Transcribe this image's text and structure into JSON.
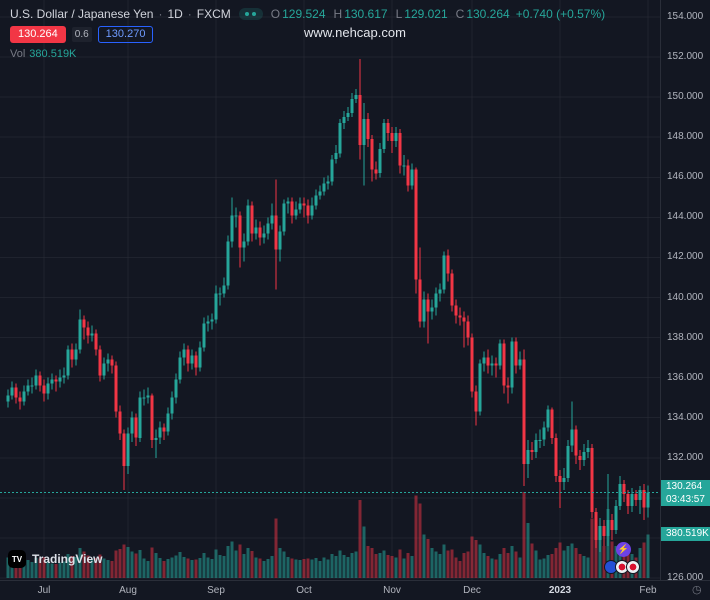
{
  "colors": {
    "bg": "#131722",
    "up": "#26a69a",
    "down": "#f23645",
    "vol_up": "rgba(38,166,154,0.55)",
    "vol_down": "rgba(242,54,69,0.5)",
    "grid": "rgba(42,46,57,0.55)",
    "axis_text": "#b2b5be",
    "dim_text": "#787b86",
    "title_text": "#d1d4dc",
    "sell_bg": "#f23645",
    "buy_border": "#2962ff",
    "badge_bg": "#26a69a"
  },
  "header": {
    "symbol_title": "U.S. Dollar / Japanese Yen",
    "sep": "·",
    "interval": "1D",
    "exchange": "FXCM",
    "ohlc_labels": {
      "o": "O",
      "h": "H",
      "l": "L",
      "c": "C"
    },
    "ohlc": {
      "o": "129.524",
      "h": "130.617",
      "l": "129.021",
      "c": "130.264",
      "change": "+0.740 (+0.57%)"
    },
    "sell_price": "130.264",
    "spread": "0.6",
    "buy_price": "130.270"
  },
  "volume": {
    "label": "Vol",
    "value": "380.519K"
  },
  "watermark": "www.nehcap.com",
  "price_axis": {
    "labels": [
      "154.000",
      "152.000",
      "150.000",
      "148.000",
      "146.000",
      "144.000",
      "142.000",
      "140.000",
      "138.000",
      "136.000",
      "134.000",
      "132.000",
      "130.000",
      "128.000",
      "126.000"
    ],
    "last_price": "130.264",
    "countdown": "03:43:57"
  },
  "logo": {
    "icon_text": "TV",
    "text": "TradingView"
  },
  "icons": {
    "boost": "⚡",
    "clock": "◷"
  },
  "chart_data": {
    "type": "candlestick",
    "title": "U.S. Dollar / Japanese Yen",
    "interval": "1D",
    "exchange": "FXCM",
    "ylim": [
      126,
      154
    ],
    "price_step": 2,
    "grid": true,
    "last": {
      "open": 129.524,
      "high": 130.617,
      "low": 129.021,
      "close": 130.264,
      "change": 0.74,
      "change_pct": 0.57,
      "volume": "380.519K"
    },
    "months": [
      {
        "label": "Jul",
        "index": 9
      },
      {
        "label": "Aug",
        "index": 30
      },
      {
        "label": "Sep",
        "index": 52
      },
      {
        "label": "Oct",
        "index": 74
      },
      {
        "label": "Nov",
        "index": 96
      },
      {
        "label": "Dec",
        "index": 116
      },
      {
        "label": "2023",
        "index": 138,
        "emph": true
      },
      {
        "label": "Feb",
        "index": 160
      }
    ],
    "candles": [
      [
        134.8,
        135.4,
        134.5,
        135.1,
        180
      ],
      [
        135.1,
        135.8,
        134.9,
        135.5,
        160
      ],
      [
        135.5,
        135.7,
        134.7,
        135.0,
        170
      ],
      [
        135.0,
        135.3,
        134.4,
        134.8,
        150
      ],
      [
        134.8,
        135.6,
        134.6,
        135.3,
        165
      ],
      [
        135.3,
        135.9,
        135.1,
        135.6,
        158
      ],
      [
        135.6,
        136.0,
        135.2,
        135.6,
        140
      ],
      [
        135.6,
        136.4,
        135.4,
        136.1,
        175
      ],
      [
        136.1,
        136.3,
        135.3,
        135.6,
        168
      ],
      [
        135.6,
        135.9,
        134.8,
        135.2,
        182
      ],
      [
        135.2,
        136.0,
        134.9,
        135.7,
        150
      ],
      [
        135.7,
        136.2,
        135.4,
        135.9,
        128
      ],
      [
        135.9,
        136.1,
        135.3,
        135.8,
        120
      ],
      [
        135.8,
        136.4,
        135.5,
        136.0,
        135
      ],
      [
        136.0,
        136.5,
        135.7,
        136.1,
        142
      ],
      [
        136.1,
        137.6,
        135.9,
        137.4,
        210
      ],
      [
        137.4,
        137.7,
        136.5,
        136.9,
        190
      ],
      [
        136.9,
        137.7,
        136.6,
        137.4,
        185
      ],
      [
        137.4,
        139.4,
        137.2,
        138.9,
        260
      ],
      [
        138.9,
        139.1,
        137.9,
        138.5,
        230
      ],
      [
        138.5,
        138.8,
        137.7,
        138.1,
        195
      ],
      [
        138.1,
        138.6,
        137.8,
        138.2,
        160
      ],
      [
        138.2,
        138.4,
        137.1,
        137.4,
        175
      ],
      [
        137.4,
        137.6,
        135.8,
        136.1,
        205
      ],
      [
        136.1,
        137.0,
        135.9,
        136.7,
        168
      ],
      [
        136.7,
        137.2,
        136.3,
        136.9,
        155
      ],
      [
        136.9,
        137.1,
        136.2,
        136.6,
        148
      ],
      [
        136.6,
        136.8,
        134.0,
        134.3,
        240
      ],
      [
        134.3,
        134.6,
        132.9,
        133.2,
        255
      ],
      [
        133.2,
        133.4,
        130.4,
        131.6,
        290
      ],
      [
        131.6,
        133.5,
        131.2,
        133.2,
        270
      ],
      [
        133.2,
        134.3,
        132.8,
        134.0,
        230
      ],
      [
        134.0,
        134.2,
        132.6,
        133.0,
        215
      ],
      [
        133.0,
        135.3,
        132.8,
        135.0,
        245
      ],
      [
        135.0,
        135.4,
        134.6,
        135.0,
        170
      ],
      [
        135.0,
        135.5,
        134.7,
        135.1,
        150
      ],
      [
        135.1,
        135.2,
        132.5,
        132.9,
        265
      ],
      [
        132.9,
        133.4,
        132.0,
        133.0,
        220
      ],
      [
        133.0,
        133.8,
        132.7,
        133.5,
        175
      ],
      [
        133.5,
        133.7,
        132.9,
        133.3,
        150
      ],
      [
        133.3,
        134.5,
        133.1,
        134.2,
        165
      ],
      [
        134.2,
        135.3,
        133.9,
        135.0,
        180
      ],
      [
        135.0,
        136.2,
        134.7,
        135.9,
        195
      ],
      [
        135.9,
        137.3,
        135.7,
        137.0,
        225
      ],
      [
        137.0,
        137.7,
        136.6,
        137.4,
        185
      ],
      [
        137.4,
        137.6,
        136.3,
        136.7,
        170
      ],
      [
        136.7,
        137.4,
        136.4,
        137.1,
        155
      ],
      [
        137.1,
        137.3,
        136.1,
        136.5,
        160
      ],
      [
        136.5,
        137.8,
        136.3,
        137.5,
        175
      ],
      [
        137.5,
        139.0,
        137.3,
        138.7,
        220
      ],
      [
        138.7,
        139.1,
        138.3,
        138.8,
        180
      ],
      [
        138.8,
        139.2,
        138.4,
        138.9,
        165
      ],
      [
        138.9,
        140.6,
        138.7,
        140.2,
        250
      ],
      [
        140.2,
        140.5,
        139.6,
        140.2,
        200
      ],
      [
        140.2,
        141.0,
        140.0,
        140.6,
        190
      ],
      [
        140.6,
        143.1,
        140.4,
        142.8,
        280
      ],
      [
        142.8,
        145.0,
        142.5,
        144.1,
        320
      ],
      [
        144.1,
        144.5,
        143.5,
        144.1,
        240
      ],
      [
        144.1,
        144.3,
        141.5,
        142.5,
        290
      ],
      [
        142.5,
        143.2,
        141.8,
        142.8,
        210
      ],
      [
        142.8,
        144.9,
        142.6,
        144.6,
        260
      ],
      [
        144.6,
        144.8,
        142.8,
        143.2,
        235
      ],
      [
        143.2,
        143.9,
        142.9,
        143.5,
        180
      ],
      [
        143.5,
        143.8,
        142.6,
        143.0,
        170
      ],
      [
        143.0,
        143.6,
        142.7,
        143.2,
        150
      ],
      [
        143.2,
        144.0,
        142.9,
        143.7,
        165
      ],
      [
        143.7,
        144.7,
        143.4,
        144.1,
        190
      ],
      [
        144.1,
        145.9,
        140.4,
        142.4,
        520
      ],
      [
        142.4,
        143.6,
        141.8,
        143.3,
        260
      ],
      [
        143.3,
        144.9,
        143.1,
        144.7,
        230
      ],
      [
        144.7,
        145.0,
        144.2,
        144.8,
        185
      ],
      [
        144.8,
        145.0,
        143.7,
        144.1,
        170
      ],
      [
        144.1,
        144.8,
        143.9,
        144.4,
        160
      ],
      [
        144.4,
        145.0,
        144.2,
        144.7,
        155
      ],
      [
        144.7,
        145.0,
        144.0,
        144.6,
        165
      ],
      [
        144.6,
        144.9,
        143.7,
        144.1,
        170
      ],
      [
        144.1,
        145.0,
        143.9,
        144.6,
        160
      ],
      [
        144.6,
        145.4,
        144.4,
        145.1,
        175
      ],
      [
        145.1,
        145.6,
        144.9,
        145.3,
        150
      ],
      [
        145.3,
        146.0,
        145.1,
        145.7,
        180
      ],
      [
        145.7,
        146.1,
        145.4,
        145.8,
        160
      ],
      [
        145.8,
        147.1,
        145.6,
        146.9,
        210
      ],
      [
        146.9,
        147.6,
        146.7,
        147.2,
        190
      ],
      [
        147.2,
        148.9,
        147.0,
        148.7,
        240
      ],
      [
        148.7,
        149.3,
        148.4,
        149.0,
        200
      ],
      [
        149.0,
        149.5,
        148.8,
        149.2,
        185
      ],
      [
        149.2,
        150.2,
        149.0,
        149.9,
        220
      ],
      [
        149.9,
        150.4,
        149.7,
        150.1,
        230
      ],
      [
        150.1,
        151.9,
        146.9,
        147.6,
        680
      ],
      [
        147.6,
        149.7,
        145.6,
        148.9,
        450
      ],
      [
        148.9,
        149.2,
        147.5,
        147.9,
        280
      ],
      [
        147.9,
        148.1,
        145.8,
        146.4,
        260
      ],
      [
        146.4,
        146.8,
        145.9,
        146.2,
        210
      ],
      [
        146.2,
        147.7,
        146.0,
        147.4,
        220
      ],
      [
        147.4,
        148.9,
        147.2,
        148.7,
        240
      ],
      [
        148.7,
        148.9,
        147.8,
        148.2,
        200
      ],
      [
        148.2,
        148.5,
        147.2,
        147.8,
        190
      ],
      [
        147.8,
        148.5,
        147.5,
        148.2,
        180
      ],
      [
        148.2,
        148.4,
        146.2,
        146.6,
        250
      ],
      [
        146.6,
        147.1,
        146.1,
        146.6,
        170
      ],
      [
        146.6,
        146.9,
        145.3,
        145.6,
        220
      ],
      [
        145.6,
        146.7,
        145.4,
        146.4,
        190
      ],
      [
        146.4,
        146.5,
        140.2,
        140.9,
        720
      ],
      [
        140.9,
        142.5,
        138.5,
        138.8,
        650
      ],
      [
        138.8,
        140.3,
        138.5,
        139.9,
        380
      ],
      [
        139.9,
        140.2,
        137.7,
        139.3,
        340
      ],
      [
        139.3,
        139.9,
        138.9,
        139.5,
        260
      ],
      [
        139.5,
        140.5,
        139.1,
        140.2,
        230
      ],
      [
        140.2,
        140.7,
        139.8,
        140.4,
        210
      ],
      [
        140.4,
        142.3,
        140.2,
        142.1,
        290
      ],
      [
        142.1,
        142.4,
        140.8,
        141.2,
        240
      ],
      [
        141.2,
        141.4,
        139.3,
        139.6,
        250
      ],
      [
        139.6,
        139.9,
        138.7,
        139.1,
        180
      ],
      [
        139.1,
        139.5,
        138.6,
        139.0,
        150
      ],
      [
        139.0,
        139.3,
        137.5,
        138.8,
        220
      ],
      [
        138.8,
        139.1,
        137.6,
        138.0,
        230
      ],
      [
        138.0,
        138.2,
        135.0,
        135.3,
        360
      ],
      [
        135.3,
        135.6,
        133.6,
        134.3,
        330
      ],
      [
        134.3,
        136.9,
        134.1,
        136.7,
        290
      ],
      [
        136.7,
        137.3,
        136.3,
        137.0,
        220
      ],
      [
        137.0,
        137.4,
        136.2,
        136.6,
        190
      ],
      [
        136.6,
        137.1,
        136.1,
        136.7,
        170
      ],
      [
        136.7,
        137.0,
        136.0,
        136.6,
        160
      ],
      [
        136.6,
        137.9,
        136.4,
        137.7,
        210
      ],
      [
        137.7,
        137.9,
        135.2,
        135.6,
        260
      ],
      [
        135.6,
        136.0,
        134.7,
        135.5,
        220
      ],
      [
        135.5,
        138.0,
        135.2,
        137.8,
        280
      ],
      [
        137.8,
        138.0,
        136.2,
        136.6,
        230
      ],
      [
        136.6,
        137.3,
        136.4,
        136.9,
        180
      ],
      [
        136.9,
        137.4,
        130.6,
        131.7,
        750
      ],
      [
        131.7,
        132.9,
        131.0,
        132.4,
        480
      ],
      [
        132.4,
        132.8,
        131.9,
        132.3,
        300
      ],
      [
        132.3,
        133.2,
        132.0,
        132.9,
        240
      ],
      [
        132.9,
        133.4,
        132.5,
        132.9,
        160
      ],
      [
        132.9,
        133.8,
        132.6,
        133.5,
        170
      ],
      [
        133.5,
        134.6,
        133.3,
        134.4,
        200
      ],
      [
        134.4,
        134.5,
        132.7,
        133.0,
        210
      ],
      [
        133.0,
        133.2,
        130.8,
        131.1,
        260
      ],
      [
        131.1,
        131.4,
        129.5,
        130.8,
        310
      ],
      [
        130.8,
        131.5,
        130.4,
        131.0,
        240
      ],
      [
        131.0,
        132.9,
        130.8,
        132.6,
        280
      ],
      [
        132.6,
        134.8,
        132.3,
        133.4,
        300
      ],
      [
        133.4,
        133.6,
        131.7,
        132.1,
        260
      ],
      [
        132.1,
        132.4,
        131.4,
        131.9,
        210
      ],
      [
        131.9,
        132.7,
        131.6,
        132.3,
        190
      ],
      [
        132.3,
        132.9,
        132.0,
        132.5,
        180
      ],
      [
        132.5,
        132.7,
        129.0,
        129.3,
        520
      ],
      [
        129.3,
        129.5,
        127.5,
        127.9,
        480
      ],
      [
        127.9,
        129.0,
        127.3,
        128.6,
        350
      ],
      [
        128.6,
        128.9,
        127.6,
        128.1,
        280
      ],
      [
        128.1,
        131.2,
        127.6,
        128.9,
        600
      ],
      [
        128.9,
        129.2,
        127.9,
        128.4,
        320
      ],
      [
        128.4,
        129.9,
        128.2,
        129.6,
        280
      ],
      [
        129.6,
        131.1,
        129.4,
        130.7,
        300
      ],
      [
        130.7,
        130.9,
        129.8,
        130.2,
        230
      ],
      [
        130.2,
        130.4,
        129.2,
        129.6,
        220
      ],
      [
        129.6,
        130.5,
        129.3,
        130.2,
        210
      ],
      [
        130.2,
        130.4,
        129.6,
        129.9,
        180
      ],
      [
        129.9,
        130.6,
        129.2,
        130.4,
        260
      ],
      [
        130.4,
        130.7,
        128.9,
        129.524,
        310
      ],
      [
        129.524,
        130.617,
        129.021,
        130.264,
        380.519
      ]
    ]
  }
}
